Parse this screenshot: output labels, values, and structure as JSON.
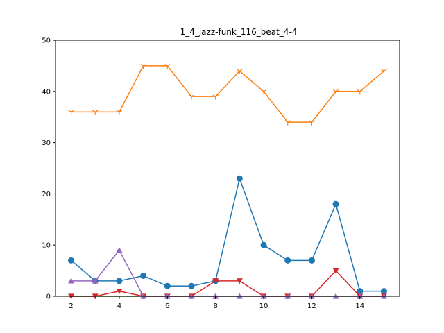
{
  "chart_data": {
    "type": "line",
    "title": "1_4_jazz-funk_116_beat_4-4",
    "xlabel": "",
    "ylabel": "",
    "xlim": [
      1.35,
      15.65
    ],
    "ylim": [
      0,
      50
    ],
    "x_ticks": [
      2,
      4,
      6,
      8,
      10,
      12,
      14
    ],
    "y_ticks": [
      0,
      10,
      20,
      30,
      40,
      50
    ],
    "grid": false,
    "legend": "none",
    "x": [
      2,
      3,
      4,
      5,
      6,
      7,
      8,
      9,
      10,
      11,
      12,
      13,
      14,
      15
    ],
    "series": [
      {
        "color": "#1f77b4",
        "marker": "circle",
        "values": [
          7,
          3,
          3,
          4,
          2,
          2,
          3,
          23,
          10,
          7,
          7,
          18,
          1,
          1
        ]
      },
      {
        "color": "#ff7f0e",
        "marker": "tri_down",
        "values": [
          36,
          36,
          36,
          45,
          45,
          39,
          39,
          44,
          40,
          34,
          34,
          40,
          40,
          44
        ]
      },
      {
        "color": "#2ca02c",
        "marker": "none",
        "values": [
          0,
          0,
          0,
          0,
          0,
          0,
          0,
          0,
          0,
          0,
          0,
          0,
          0,
          0
        ]
      },
      {
        "color": "#d62728",
        "marker": "triangle_down",
        "values": [
          0,
          0,
          1,
          0,
          0,
          0,
          3,
          3,
          0,
          0,
          0,
          5,
          0,
          0
        ]
      },
      {
        "color": "#9467bd",
        "marker": "triangle_up",
        "values": [
          3,
          3,
          9,
          0,
          0,
          0,
          0,
          0,
          0,
          0,
          0,
          0,
          0,
          0
        ]
      }
    ]
  }
}
